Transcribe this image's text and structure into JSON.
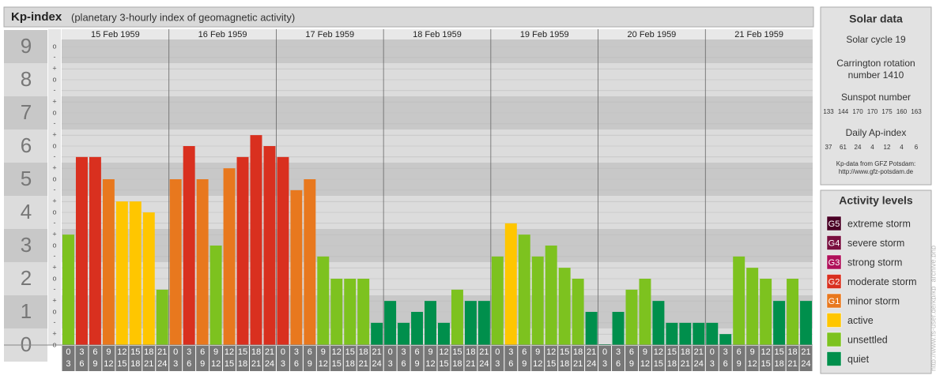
{
  "chart_data": {
    "type": "bar",
    "title": "Kp-index",
    "subtitle": "(planetary 3-hourly index of geomagnetic activity)",
    "days": [
      "15 Feb 1959",
      "16 Feb 1959",
      "17 Feb 1959",
      "18 Feb 1959",
      "19 Feb 1959",
      "20 Feb 1959",
      "21 Feb 1959"
    ],
    "hour_ranges": [
      [
        "0",
        "3"
      ],
      [
        "3",
        "6"
      ],
      [
        "6",
        "9"
      ],
      [
        "9",
        "12"
      ],
      [
        "12",
        "15"
      ],
      [
        "15",
        "18"
      ],
      [
        "18",
        "21"
      ],
      [
        "21",
        "24"
      ]
    ],
    "values": [
      3.33,
      5.67,
      5.67,
      5.0,
      4.33,
      4.33,
      4.0,
      1.67,
      5.0,
      6.0,
      5.0,
      3.0,
      5.33,
      5.67,
      6.33,
      6.0,
      5.67,
      4.67,
      5.0,
      2.67,
      2.0,
      2.0,
      2.0,
      0.67,
      1.33,
      0.67,
      1.0,
      1.33,
      0.67,
      1.67,
      1.33,
      1.33,
      2.67,
      3.67,
      3.33,
      2.67,
      3.0,
      2.33,
      2.0,
      1.0,
      0,
      1.0,
      1.67,
      2.0,
      1.33,
      0.67,
      0.67,
      0.67,
      0.67,
      0.33,
      2.67,
      2.33,
      2.0,
      1.33,
      2.0,
      1.33
    ],
    "colors": [
      "#7dc21f",
      "#d9301f",
      "#d9301f",
      "#e8781e",
      "#ffc600",
      "#ffc600",
      "#ffc600",
      "#7dc21f",
      "#e8781e",
      "#d9301f",
      "#e8781e",
      "#7dc21f",
      "#e8781e",
      "#d9301f",
      "#d9301f",
      "#d9301f",
      "#d9301f",
      "#e8781e",
      "#e8781e",
      "#7dc21f",
      "#7dc21f",
      "#7dc21f",
      "#7dc21f",
      "#008f4c",
      "#008f4c",
      "#008f4c",
      "#008f4c",
      "#008f4c",
      "#008f4c",
      "#7dc21f",
      "#008f4c",
      "#008f4c",
      "#7dc21f",
      "#ffc600",
      "#7dc21f",
      "#7dc21f",
      "#7dc21f",
      "#7dc21f",
      "#7dc21f",
      "#008f4c",
      "#008f4c",
      "#008f4c",
      "#7dc21f",
      "#7dc21f",
      "#008f4c",
      "#008f4c",
      "#008f4c",
      "#008f4c",
      "#008f4c",
      "#008f4c",
      "#7dc21f",
      "#7dc21f",
      "#7dc21f",
      "#008f4c",
      "#7dc21f",
      "#008f4c"
    ],
    "ylim": [
      0,
      9.5
    ],
    "yticks": [
      0,
      1,
      2,
      3,
      4,
      5,
      6,
      7,
      8,
      9
    ],
    "minor_ticks": [
      {
        "value": 0,
        "label": "o"
      },
      {
        "value": 0.33,
        "label": "+"
      },
      {
        "value": 0.67,
        "label": "-"
      },
      {
        "value": 1,
        "label": "o"
      },
      {
        "value": 1.33,
        "label": "+"
      },
      {
        "value": 1.67,
        "label": "-"
      },
      {
        "value": 2,
        "label": "o"
      },
      {
        "value": 2.33,
        "label": "+"
      },
      {
        "value": 2.67,
        "label": "-"
      },
      {
        "value": 3,
        "label": "o"
      },
      {
        "value": 3.33,
        "label": "+"
      },
      {
        "value": 3.67,
        "label": "-"
      },
      {
        "value": 4,
        "label": "o"
      },
      {
        "value": 4.33,
        "label": "+"
      },
      {
        "value": 4.67,
        "label": "-"
      },
      {
        "value": 5,
        "label": "o"
      },
      {
        "value": 5.33,
        "label": "+"
      },
      {
        "value": 5.67,
        "label": "-"
      },
      {
        "value": 6,
        "label": "o"
      },
      {
        "value": 6.33,
        "label": "+"
      },
      {
        "value": 6.67,
        "label": "-"
      },
      {
        "value": 7,
        "label": "o"
      },
      {
        "value": 7.33,
        "label": "+"
      },
      {
        "value": 7.67,
        "label": "-"
      },
      {
        "value": 8,
        "label": "o"
      },
      {
        "value": 8.33,
        "label": "+"
      },
      {
        "value": 8.67,
        "label": "-"
      },
      {
        "value": 9,
        "label": "o"
      }
    ],
    "grid": true
  },
  "solar": {
    "title": "Solar data",
    "cycle": "Solar cycle 19",
    "carrington": [
      "Carrington rotation",
      "number 1410"
    ],
    "sunspot_label": "Sunspot number",
    "sunspots": [
      133,
      144,
      170,
      170,
      175,
      160,
      163
    ],
    "ap_label": "Daily Ap-index",
    "ap": [
      37,
      61,
      24,
      4,
      12,
      4,
      6
    ],
    "source": [
      "Kp-data from GFZ Potsdam:",
      "http://www.gfz-potsdam.de"
    ]
  },
  "legend": {
    "title": "Activity levels",
    "items": [
      {
        "badge": "G5",
        "label": "extreme storm",
        "color": "#4a0025"
      },
      {
        "badge": "G4",
        "label": "severe storm",
        "color": "#7a1040"
      },
      {
        "badge": "G3",
        "label": "strong storm",
        "color": "#b0105a"
      },
      {
        "badge": "G2",
        "label": "moderate storm",
        "color": "#d9301f"
      },
      {
        "badge": "G1",
        "label": "minor storm",
        "color": "#e8781e"
      },
      {
        "label": "active",
        "color": "#ffc600"
      },
      {
        "label": "unsettled",
        "color": "#7dc21f"
      },
      {
        "label": "quiet",
        "color": "#008f4c"
      }
    ]
  },
  "watermark": "http://www.fs-user.de/kp/kp_archive.php"
}
